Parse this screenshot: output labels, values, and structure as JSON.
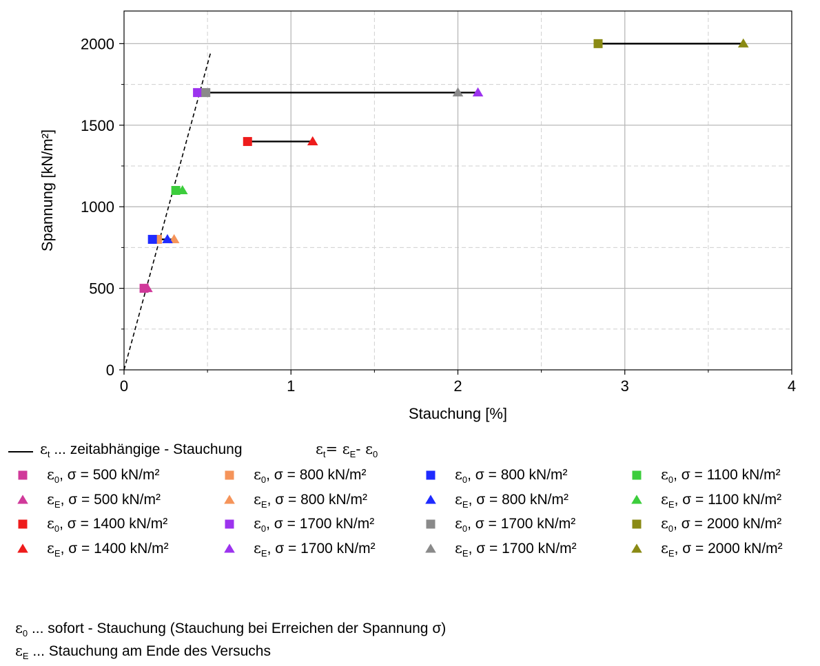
{
  "chart_data": {
    "type": "scatter",
    "xlabel": "Stauchung [%]",
    "ylabel": "Spannung [kN/m²]",
    "xlim": [
      0,
      4
    ],
    "ylim": [
      0,
      2200
    ],
    "x_ticks": [
      "0",
      "1",
      "2",
      "3",
      "4"
    ],
    "y_ticks": [
      "0",
      "500",
      "1000",
      "1500",
      "2000"
    ],
    "grid": true,
    "series": [
      {
        "name": "ε0, σ = 500 kN/m²",
        "marker": "square",
        "color": "#d0399a",
        "x": [
          0.12
        ],
        "y": [
          500
        ]
      },
      {
        "name": "εE, σ = 500 kN/m²",
        "marker": "triangle",
        "color": "#d0399a",
        "x": [
          0.14
        ],
        "y": [
          500
        ]
      },
      {
        "name": "ε0, σ = 800 kN/m²",
        "marker": "square",
        "color": "#f5945a",
        "x": [
          0.2
        ],
        "y": [
          800
        ]
      },
      {
        "name": "εE, σ = 800 kN/m²",
        "marker": "triangle",
        "color": "#f5945a",
        "x": [
          0.3
        ],
        "y": [
          800
        ]
      },
      {
        "name": "ε0, σ = 800 kN/m²",
        "marker": "square",
        "color": "#1f2bff",
        "x": [
          0.17
        ],
        "y": [
          800
        ]
      },
      {
        "name": "εE, σ = 800 kN/m²",
        "marker": "triangle",
        "color": "#1f2bff",
        "x": [
          0.26
        ],
        "y": [
          800
        ]
      },
      {
        "name": "ε0, σ = 1100 kN/m²",
        "marker": "square",
        "color": "#3ccd3c",
        "x": [
          0.31
        ],
        "y": [
          1100
        ]
      },
      {
        "name": "εE, σ = 1100 kN/m²",
        "marker": "triangle",
        "color": "#3ccd3c",
        "x": [
          0.35
        ],
        "y": [
          1100
        ]
      },
      {
        "name": "ε0, σ = 1400 kN/m²",
        "marker": "square",
        "color": "#ee1c1c",
        "x": [
          0.74
        ],
        "y": [
          1400
        ]
      },
      {
        "name": "εE, σ = 1400 kN/m²",
        "marker": "triangle",
        "color": "#ee1c1c",
        "x": [
          1.13
        ],
        "y": [
          1400
        ]
      },
      {
        "name": "ε0, σ = 1700 kN/m²",
        "marker": "square",
        "color": "#9c33ee",
        "x": [
          0.44
        ],
        "y": [
          1700
        ]
      },
      {
        "name": "εE, σ = 1700 kN/m²",
        "marker": "triangle",
        "color": "#9c33ee",
        "x": [
          2.12
        ],
        "y": [
          1700
        ]
      },
      {
        "name": "ε0, σ = 1700 kN/m²",
        "marker": "square",
        "color": "#8a8a8a",
        "x": [
          0.49
        ],
        "y": [
          1700
        ]
      },
      {
        "name": "εE, σ = 1700 kN/m²",
        "marker": "triangle",
        "color": "#8a8a8a",
        "x": [
          2.0
        ],
        "y": [
          1700
        ]
      },
      {
        "name": "ε0, σ = 2000 kN/m²",
        "marker": "square",
        "color": "#8a8a14",
        "x": [
          2.84
        ],
        "y": [
          2000
        ]
      },
      {
        "name": "εE, σ = 2000 kN/m²",
        "marker": "triangle",
        "color": "#8a8a14",
        "x": [
          3.71
        ],
        "y": [
          2000
        ]
      }
    ],
    "time_dependent_segments": [
      {
        "y": 500,
        "x0": 0.12,
        "x1": 0.14
      },
      {
        "y": 800,
        "x0": 0.17,
        "x1": 0.3
      },
      {
        "y": 1100,
        "x0": 0.31,
        "x1": 0.35
      },
      {
        "y": 1400,
        "x0": 0.74,
        "x1": 1.13
      },
      {
        "y": 1700,
        "x0": 0.44,
        "x1": 2.12
      },
      {
        "y": 2000,
        "x0": 2.84,
        "x1": 3.71
      }
    ],
    "dashed_line": {
      "x": [
        0,
        0.52
      ],
      "y": [
        0,
        1950
      ]
    }
  },
  "legend": {
    "line_key": {
      "eps": "ε",
      "sub": "t",
      "text": " ... zeitabhängige - Stauchung",
      "formula": {
        "eps1": "ε",
        "sub1": "t",
        "mid": "= ε",
        "sub2": "E",
        "mid2": "- ε",
        "sub3": "0"
      }
    },
    "items": [
      {
        "eps": "ε",
        "sub": "0",
        "text": ", σ = 500 kN/m²"
      },
      {
        "eps": "ε",
        "sub": "0",
        "text": ", σ = 800 kN/m²"
      },
      {
        "eps": "ε",
        "sub": "0",
        "text": ", σ = 800 kN/m²"
      },
      {
        "eps": "ε",
        "sub": "0",
        "text": ", σ = 1100 kN/m²"
      },
      {
        "eps": "ε",
        "sub": "E",
        "text": ", σ = 500 kN/m²"
      },
      {
        "eps": "ε",
        "sub": "E",
        "text": ", σ = 800 kN/m²"
      },
      {
        "eps": "ε",
        "sub": "E",
        "text": ", σ = 800 kN/m²"
      },
      {
        "eps": "ε",
        "sub": "E",
        "text": ", σ = 1100 kN/m²"
      },
      {
        "eps": "ε",
        "sub": "0",
        "text": ", σ = 1400 kN/m²"
      },
      {
        "eps": "ε",
        "sub": "0",
        "text": ", σ = 1700 kN/m²"
      },
      {
        "eps": "ε",
        "sub": "0",
        "text": ", σ = 1700 kN/m²"
      },
      {
        "eps": "ε",
        "sub": "0",
        "text": ", σ = 2000 kN/m²"
      },
      {
        "eps": "ε",
        "sub": "E",
        "text": ", σ = 1400 kN/m²"
      },
      {
        "eps": "ε",
        "sub": "E",
        "text": ", σ = 1700 kN/m²"
      },
      {
        "eps": "ε",
        "sub": "E",
        "text": ", σ = 1700 kN/m²"
      },
      {
        "eps": "ε",
        "sub": "E",
        "text": ", σ = 2000 kN/m²"
      }
    ]
  },
  "notes": {
    "n1": {
      "eps": "ε",
      "sub": "0",
      "text": " ... sofort - Stauchung (Stauchung bei Erreichen der Spannung σ)"
    },
    "n2": {
      "eps": "ε",
      "sub": "E",
      "text": " ... Stauchung am Ende des Versuchs"
    }
  }
}
